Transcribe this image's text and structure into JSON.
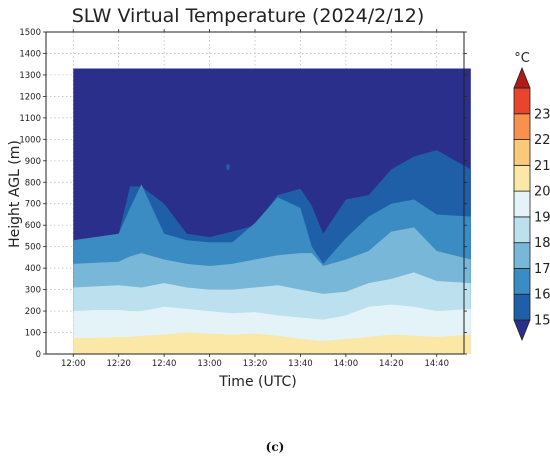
{
  "chart_data": {
    "type": "heatmap",
    "title": "SLW Virtual Temperature (2024/2/12)",
    "xlabel": "Time (UTC)",
    "ylabel": "Height AGL (m)",
    "x_ticks": [
      "12:00",
      "12:20",
      "12:40",
      "13:00",
      "13:20",
      "13:40",
      "14:00",
      "14:20",
      "14:40"
    ],
    "y_ticks": [
      0,
      100,
      200,
      300,
      400,
      500,
      600,
      700,
      800,
      900,
      1000,
      1100,
      1200,
      1300,
      1400,
      1500
    ],
    "xlim_minutes": [
      -12,
      172
    ],
    "ylim": [
      0,
      1500
    ],
    "data_time_range": [
      "12:00",
      "14:55"
    ],
    "data_height_top": 1330,
    "grid": true,
    "grid_style": "dotted",
    "colorbar": {
      "unit": "°C",
      "ticks": [
        15,
        16,
        17,
        18,
        19,
        20,
        21,
        22,
        23
      ],
      "placement": "right",
      "levels": [
        {
          "range": [
            14,
            15
          ],
          "color": "#2b2f8c"
        },
        {
          "range": [
            15,
            16
          ],
          "color": "#1f5fa8"
        },
        {
          "range": [
            16,
            17
          ],
          "color": "#3b8cc2"
        },
        {
          "range": [
            17,
            18
          ],
          "color": "#78b7d8"
        },
        {
          "range": [
            18,
            19
          ],
          "color": "#bde0ee"
        },
        {
          "range": [
            19,
            20
          ],
          "color": "#e4f3f7"
        },
        {
          "range": [
            20,
            21
          ],
          "color": "#fbe7a6"
        },
        {
          "range": [
            21,
            22
          ],
          "color": "#fbc97a"
        },
        {
          "range": [
            22,
            23
          ],
          "color": "#f7924e"
        },
        {
          "range": [
            23,
            24
          ],
          "color": "#e8452c"
        },
        {
          "range": [
            24,
            25
          ],
          "color": "#b01a1a"
        }
      ]
    },
    "times_minutes": [
      0,
      10,
      20,
      25,
      30,
      40,
      50,
      60,
      70,
      80,
      90,
      100,
      105,
      110,
      120,
      130,
      140,
      150,
      160,
      175
    ],
    "isotherm_heights": {
      "20": [
        75,
        75,
        80,
        80,
        85,
        90,
        100,
        95,
        90,
        95,
        85,
        70,
        65,
        60,
        70,
        80,
        90,
        85,
        80,
        90
      ],
      "19": [
        200,
        205,
        205,
        200,
        200,
        220,
        210,
        200,
        190,
        195,
        180,
        170,
        165,
        160,
        180,
        220,
        230,
        220,
        200,
        210
      ],
      "18": [
        310,
        315,
        320,
        315,
        310,
        330,
        310,
        300,
        300,
        310,
        320,
        300,
        290,
        280,
        290,
        330,
        350,
        380,
        340,
        330
      ],
      "17": [
        420,
        425,
        430,
        455,
        470,
        440,
        420,
        410,
        420,
        440,
        460,
        470,
        470,
        410,
        440,
        480,
        570,
        590,
        480,
        440
      ],
      "16": [
        530,
        545,
        560,
        680,
        790,
        560,
        530,
        520,
        520,
        610,
        730,
        680,
        500,
        420,
        540,
        640,
        700,
        720,
        650,
        640
      ],
      "15": [
        530,
        545,
        560,
        780,
        780,
        700,
        560,
        545,
        570,
        600,
        740,
        770,
        690,
        560,
        720,
        740,
        860,
        920,
        950,
        860
      ]
    },
    "caption": "(c)"
  }
}
